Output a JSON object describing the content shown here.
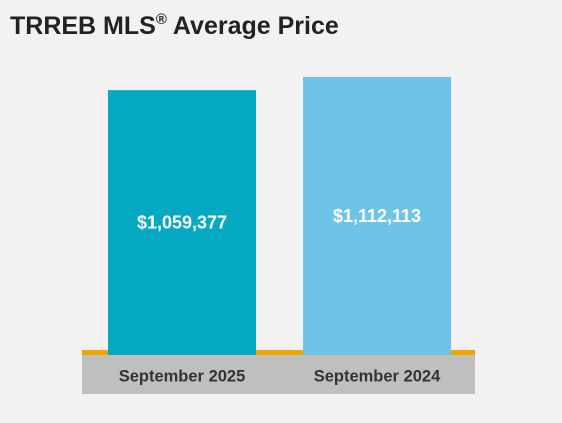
{
  "title": {
    "main": "TRREB MLS",
    "registered_mark": "®",
    "rest": " Average Price"
  },
  "colors": {
    "background": "#f2f2f2",
    "axis_line": "#f0a500",
    "axis_band": "#bfbfbf"
  },
  "chart_data": {
    "type": "bar",
    "title": "TRREB MLS® Average Price",
    "categories": [
      "September 2025",
      "September 2024"
    ],
    "values": [
      1059377,
      1112113
    ],
    "value_labels": [
      "$1,059,377",
      "$1,112,113"
    ],
    "bar_colors": [
      "#06a9c2",
      "#6dc4e8"
    ],
    "xlabel": "",
    "ylabel": "",
    "grid": false,
    "legend": "none"
  }
}
